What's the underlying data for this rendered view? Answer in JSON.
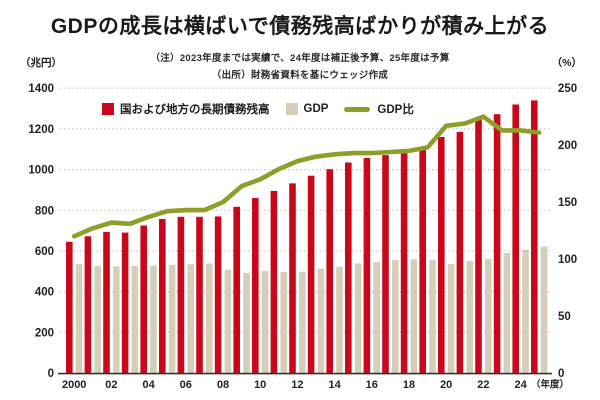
{
  "title": "GDPの成長は横ばいで債務残高ばかりが積み上がる",
  "note_line1": "（注）2023年度までは実績で、24年度は補正後予算、25年度は予算",
  "note_line2": "（出所）財務省資料を基にウェッジ作成",
  "axis_units": {
    "left": "（兆円）",
    "right": "（%）",
    "x": "（年度）"
  },
  "legend": {
    "debt_label": "国および地方の長期債務残高",
    "gdp_label": "GDP",
    "ratio_label": "GDP比"
  },
  "colors": {
    "debt_bar": "#c9091b",
    "gdp_bar": "#d5cfba",
    "ratio_line": "#8f9e28",
    "grid": "#c8c8c8",
    "axis": "#333333"
  },
  "chart_data": {
    "type": "bar+line combo",
    "title": "GDPの成長は横ばいで債務残高ばかりが積み上がる",
    "categories": [
      2000,
      2001,
      2002,
      2003,
      2004,
      2005,
      2006,
      2007,
      2008,
      2009,
      2010,
      2011,
      2012,
      2013,
      2014,
      2015,
      2016,
      2017,
      2018,
      2019,
      2020,
      2021,
      2022,
      2023,
      2024,
      2025
    ],
    "x_tick_labels": [
      "2000",
      "02",
      "04",
      "06",
      "08",
      "10",
      "12",
      "14",
      "16",
      "18",
      "20",
      "22",
      "24"
    ],
    "series": [
      {
        "name": "国および地方の長期債務残高",
        "type": "bar",
        "axis": "left",
        "color": "#c9091b",
        "values": [
          645,
          672,
          693,
          690,
          725,
          757,
          768,
          768,
          770,
          817,
          860,
          895,
          932,
          970,
          1002,
          1035,
          1057,
          1071,
          1082,
          1097,
          1160,
          1185,
          1258,
          1272,
          1320,
          1340
        ]
      },
      {
        "name": "GDP",
        "type": "bar",
        "axis": "left",
        "color": "#d5cfba",
        "values": [
          535,
          527,
          524,
          526,
          529,
          532,
          535,
          539,
          508,
          492,
          502,
          496,
          498,
          513,
          523,
          539,
          546,
          555,
          559,
          556,
          535,
          551,
          561,
          590,
          606,
          622
        ]
      },
      {
        "name": "GDP比",
        "type": "line",
        "axis": "right",
        "color": "#8f9e28",
        "values": [
          120,
          127,
          132,
          131,
          137,
          142,
          143,
          143,
          150,
          164,
          170,
          179,
          186,
          190,
          192,
          193,
          193,
          194,
          195,
          198,
          217,
          219,
          225,
          213,
          213,
          211
        ]
      }
    ],
    "left_axis": {
      "unit": "兆円",
      "range": [
        0,
        1400
      ],
      "ticks": [
        0,
        200,
        400,
        600,
        800,
        1000,
        1200,
        1400
      ]
    },
    "right_axis": {
      "unit": "%",
      "range": [
        0,
        250
      ],
      "ticks": [
        0,
        50,
        100,
        150,
        200,
        250
      ]
    },
    "x_axis_unit": "年度",
    "grid": "dotted horizontal lines at left-axis ticks",
    "legend_position": "top inside, horizontal row"
  }
}
